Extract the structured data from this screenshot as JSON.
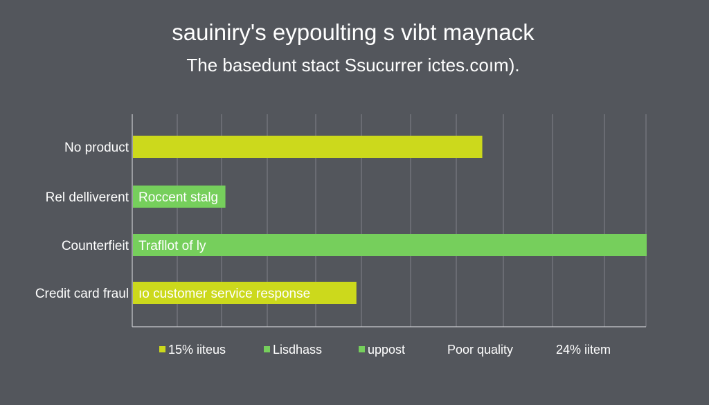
{
  "chart_data": {
    "type": "bar",
    "orientation": "horizontal",
    "title": "sauiniry's eypoulting s vibt maynack",
    "subtitle": "The basedunt stact Ssucurrer ictes.coım).",
    "categories": [
      "No product",
      "Rel delliverent",
      "Counterfieit",
      "Credit card fraul"
    ],
    "values": [
      68,
      18,
      100,
      43.5
    ],
    "bar_colors": [
      "#ccd91c",
      "#76cf5c",
      "#76cf5c",
      "#ccd91c"
    ],
    "bar_labels": [
      "",
      "Roccent stalg",
      "Trafllot of ly",
      "ıo customer service response"
    ],
    "xlim": [
      0,
      100
    ],
    "grid": true,
    "legend_position": "bottom",
    "legend": [
      {
        "label": "15% iiteus",
        "color": "#ccd91c"
      },
      {
        "label": "Lisdhass",
        "color": "#76cf5c"
      },
      {
        "label": "uppost",
        "color": "#76cf5c"
      },
      {
        "label": "Poor quality",
        "color": ""
      },
      {
        "label": "24% iitem",
        "color": ""
      }
    ]
  }
}
